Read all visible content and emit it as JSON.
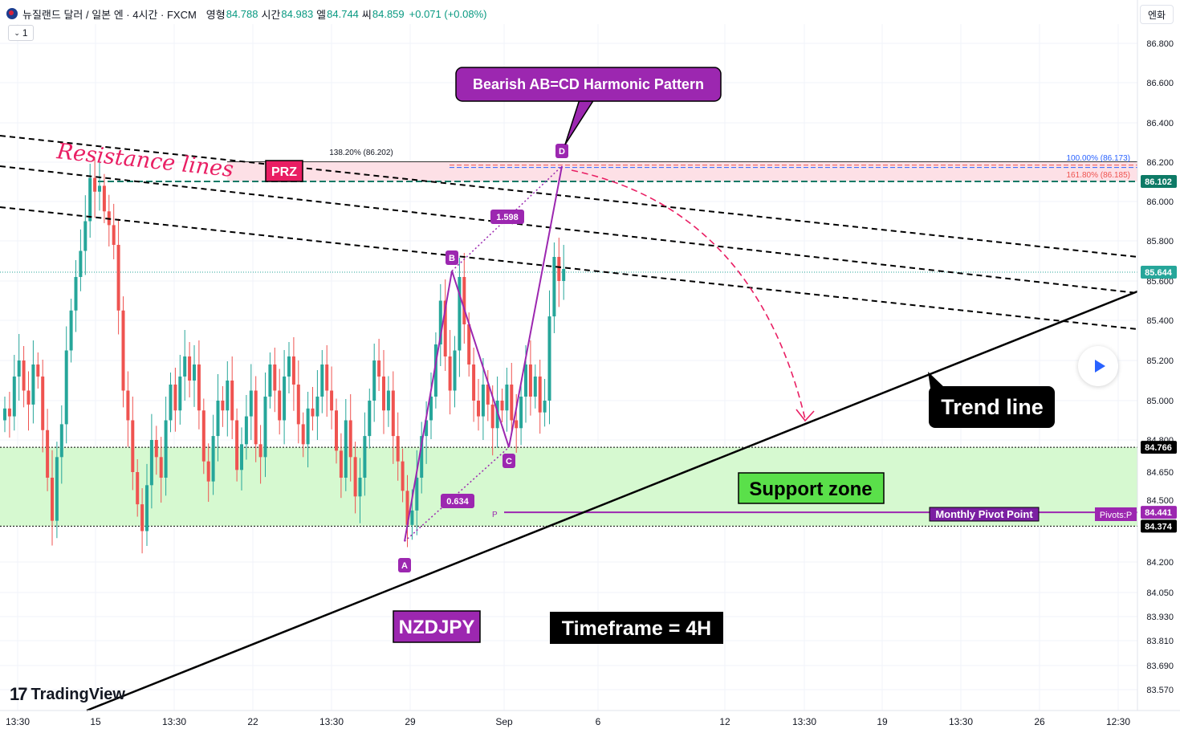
{
  "header": {
    "symbol": "뉴질랜드 달러 / 일본 엔 · 4시간 · FXCM",
    "open_label": "영형",
    "open": "84.788",
    "high_label": "시간",
    "high": "84.983",
    "low_label": "엘",
    "low": "84.744",
    "close_label": "씨",
    "close": "84.859",
    "change": "+0.071 (+0.08%)",
    "interval_value": "1",
    "currency_button": "엔화"
  },
  "branding": {
    "logo_text": "TradingView"
  },
  "colors": {
    "up": "#26a69a",
    "down": "#ef5350",
    "pattern": "#9c27b0",
    "prz": "#f4b8c4",
    "support": "#d6f9d0",
    "accent_blue": "#2962ff"
  },
  "chart_data": {
    "type": "candlestick",
    "symbol": "NZDJPY",
    "timeframe": "4H",
    "ylim": [
      83.5,
      86.9
    ],
    "yticks": [
      "86.800",
      "86.600",
      "86.400",
      "86.200",
      "86.000",
      "85.800",
      "85.600",
      "85.400",
      "85.200",
      "85.000",
      "84.800",
      "84.650",
      "84.500",
      "84.200",
      "84.050",
      "83.930",
      "83.810",
      "83.690",
      "83.570"
    ],
    "xticks": [
      "13:30",
      "15",
      "13:30",
      "22",
      "13:30",
      "29",
      "Sep",
      "6",
      "12",
      "13:30",
      "19",
      "13:30",
      "26",
      "12:30"
    ],
    "close_seq": [
      84.96,
      84.92,
      85.12,
      85.2,
      85.05,
      84.98,
      85.18,
      85.12,
      84.85,
      84.62,
      84.4,
      84.72,
      84.88,
      85.25,
      85.45,
      85.62,
      85.75,
      85.9,
      86.12,
      86.05,
      86.08,
      85.95,
      85.88,
      85.78,
      85.45,
      85.05,
      84.9,
      84.65,
      84.48,
      84.35,
      84.58,
      84.8,
      84.72,
      84.62,
      84.9,
      85.08,
      84.95,
      85.12,
      85.22,
      85.1,
      85.18,
      84.95,
      84.7,
      84.6,
      84.82,
      85.0,
      84.95,
      85.1,
      84.9,
      84.66,
      84.78,
      84.92,
      85.05,
      84.78,
      84.72,
      85.02,
      85.18,
      85.05,
      84.9,
      85.12,
      85.22,
      85.08,
      84.88,
      84.78,
      84.96,
      84.92,
      85.02,
      85.18,
      85.05,
      84.95,
      84.75,
      84.62,
      84.9,
      84.72,
      84.52,
      84.62,
      84.82,
      85.0,
      85.2,
      85.12,
      84.95,
      85.05,
      84.82,
      84.7,
      84.55,
      84.38,
      84.45,
      84.62,
      84.82,
      84.9,
      85.02,
      85.28,
      85.5,
      85.22,
      85.05,
      85.25,
      85.62,
      85.38,
      85.18,
      85.0,
      84.92,
      85.08,
      84.98,
      84.86,
      85.0,
      84.95,
      85.08,
      84.9,
      84.86,
      85.02,
      85.18,
      85.02,
      85.12,
      84.94,
      85.0,
      85.42,
      85.72,
      85.6,
      85.66
    ],
    "levels": [
      {
        "label": "86.102",
        "value": 86.102,
        "color": "#0d7a66"
      },
      {
        "label": "85.644",
        "value": 85.644,
        "color": "#26a69a"
      },
      {
        "label": "84.766",
        "value": 84.766,
        "color": "#000000"
      },
      {
        "label": "84.441",
        "value": 84.441,
        "color": "#9c27b0"
      },
      {
        "label": "84.374",
        "value": 84.374,
        "color": "#000000"
      }
    ],
    "pattern": {
      "name": "Bearish AB=CD Harmonic Pattern",
      "points": [
        {
          "label": "A",
          "price": 84.3
        },
        {
          "label": "B",
          "price": 85.65
        },
        {
          "label": "C",
          "price": 84.766
        },
        {
          "label": "D",
          "price": 86.18
        }
      ],
      "ratios": [
        "0.634",
        "1.598"
      ],
      "fib_labels": [
        "138.20% (86.202)",
        "100.00% (86.173)",
        "161.80% (86.185)"
      ]
    },
    "annotations": {
      "resistance": "Resistance lines",
      "prz": "PRZ",
      "trend": "Trend line",
      "support": "Support zone",
      "pivot": "Monthly Pivot Point",
      "pivot_tag": "Pivots:P",
      "pivot_p": "P",
      "pair": "NZDJPY",
      "timeframe": "Timeframe = 4H"
    }
  }
}
